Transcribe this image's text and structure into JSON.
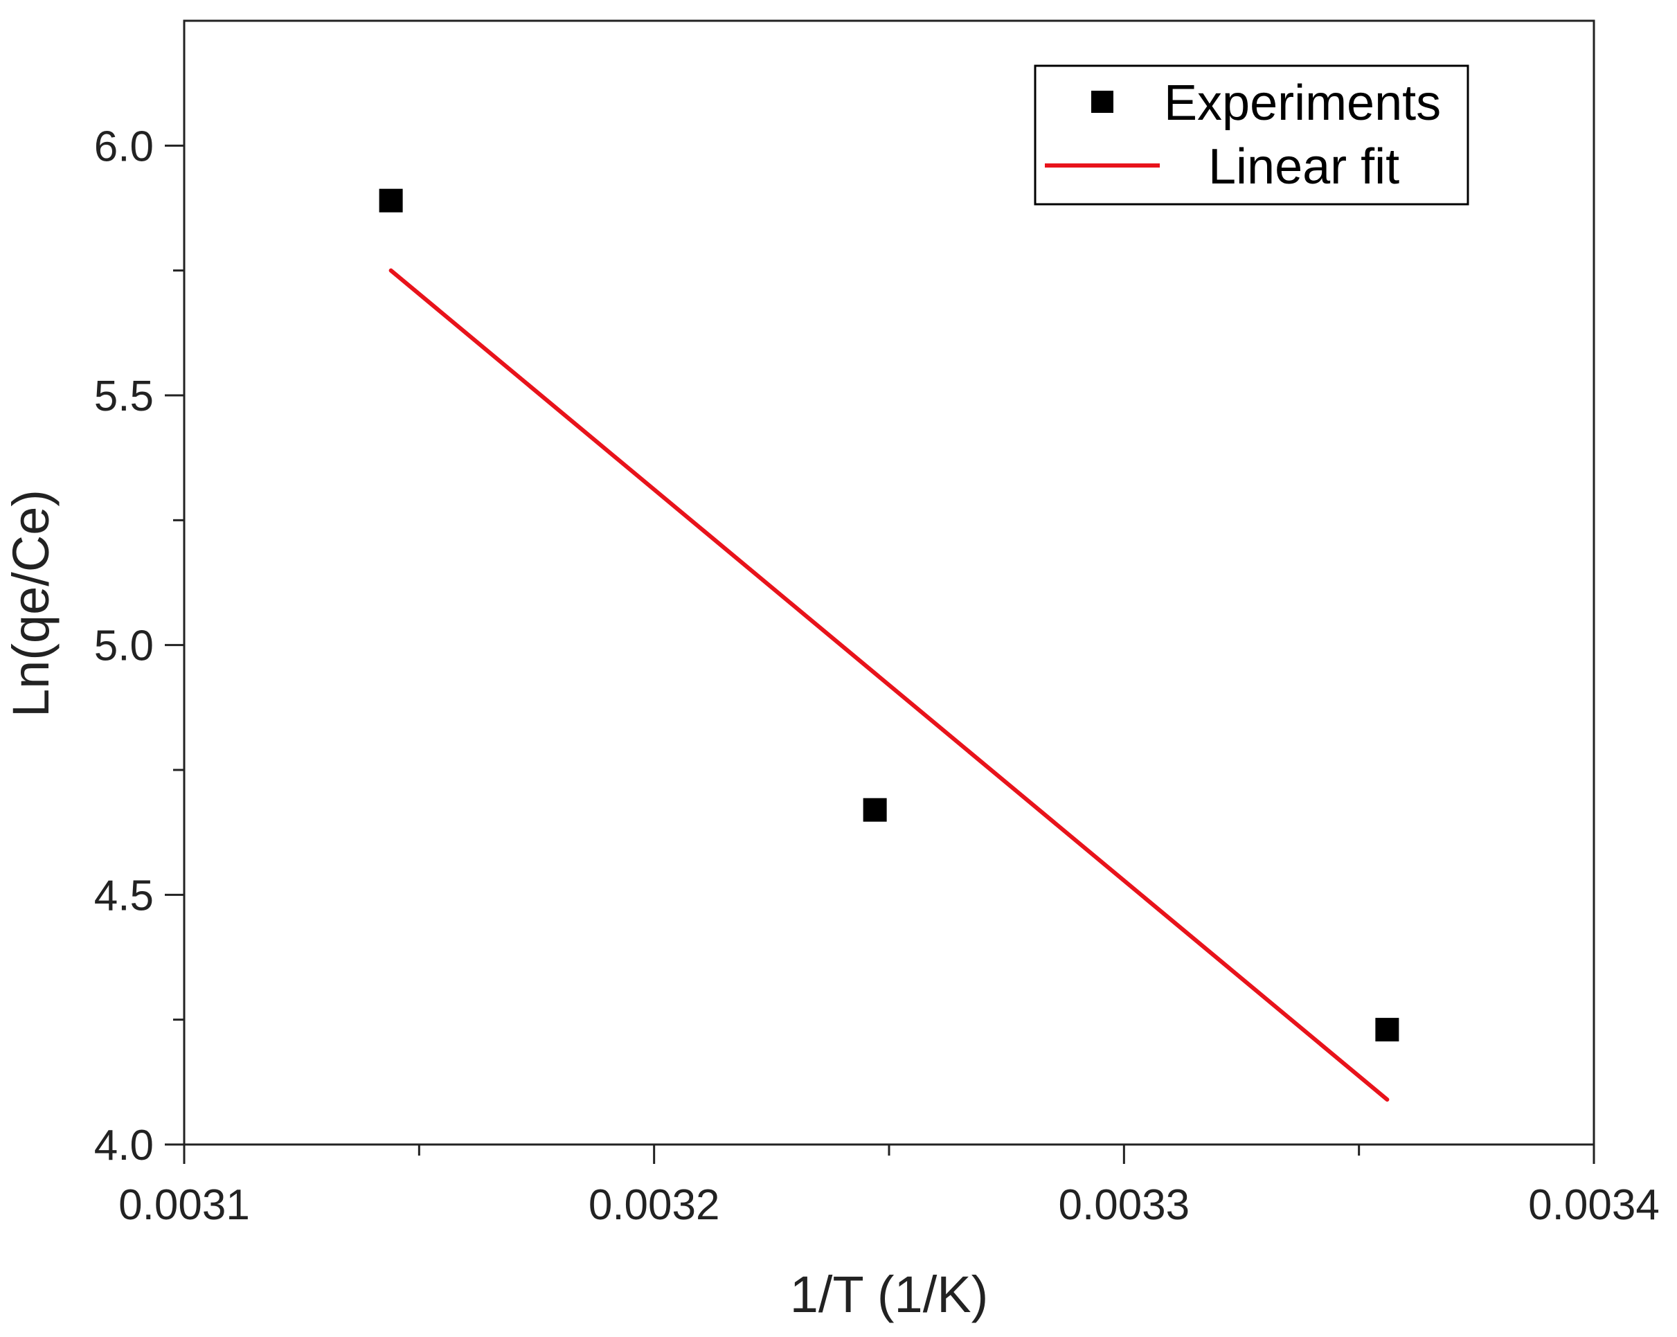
{
  "chart_data": {
    "type": "scatter",
    "title": "",
    "xlabel": "1/T  (1/K)",
    "ylabel": "Ln(qe/Ce)",
    "xlim": [
      0.0031,
      0.0034
    ],
    "ylim": [
      4.0,
      6.25
    ],
    "x_ticks": [
      {
        "value": 0.0031,
        "label": "0.0031"
      },
      {
        "value": 0.0032,
        "label": "0.0032"
      },
      {
        "value": 0.0033,
        "label": "0.0033"
      },
      {
        "value": 0.0034,
        "label": "0.0034"
      }
    ],
    "x_minor_ticks": [
      0.00315,
      0.00325,
      0.00335
    ],
    "y_ticks": [
      {
        "value": 4.0,
        "label": "4.0"
      },
      {
        "value": 4.5,
        "label": "4.5"
      },
      {
        "value": 5.0,
        "label": "5.0"
      },
      {
        "value": 5.5,
        "label": "5.5"
      },
      {
        "value": 6.0,
        "label": "6.0"
      }
    ],
    "y_minor_ticks": [
      4.25,
      4.75,
      5.25,
      5.75
    ],
    "grid": false,
    "legend_position": "top-right",
    "series": [
      {
        "name": "Experiments",
        "kind": "scatter",
        "marker": "square",
        "color": "#000000",
        "points": [
          {
            "x": 0.003144,
            "y": 5.89
          },
          {
            "x": 0.003247,
            "y": 4.67
          },
          {
            "x": 0.003356,
            "y": 4.23
          }
        ]
      },
      {
        "name": "Linear fit",
        "kind": "line",
        "color": "#e8131b",
        "points": [
          {
            "x": 0.003144,
            "y": 5.75
          },
          {
            "x": 0.003356,
            "y": 4.09
          }
        ]
      }
    ]
  }
}
